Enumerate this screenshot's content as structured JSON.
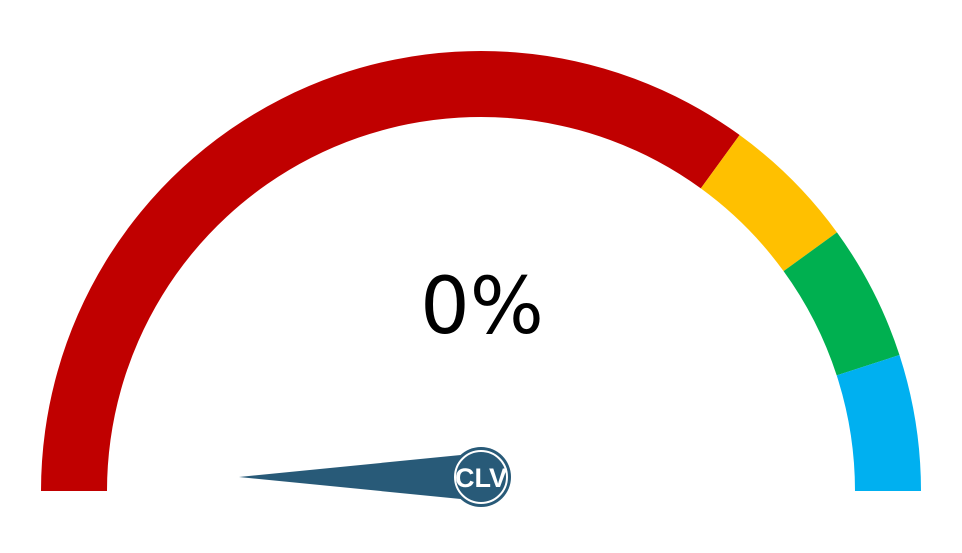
{
  "chart_data": {
    "type": "gauge",
    "value": 0,
    "value_label": "0%",
    "range": [
      0,
      100
    ],
    "segments": [
      {
        "from": 0,
        "to": 70,
        "color": "#C00000"
      },
      {
        "from": 70,
        "to": 80,
        "color": "#FFC000"
      },
      {
        "from": 80,
        "to": 90,
        "color": "#00B050"
      },
      {
        "from": 90,
        "to": 100,
        "color": "#00B0F0"
      }
    ],
    "needle_color": "#285A78",
    "logo": "CLV"
  }
}
